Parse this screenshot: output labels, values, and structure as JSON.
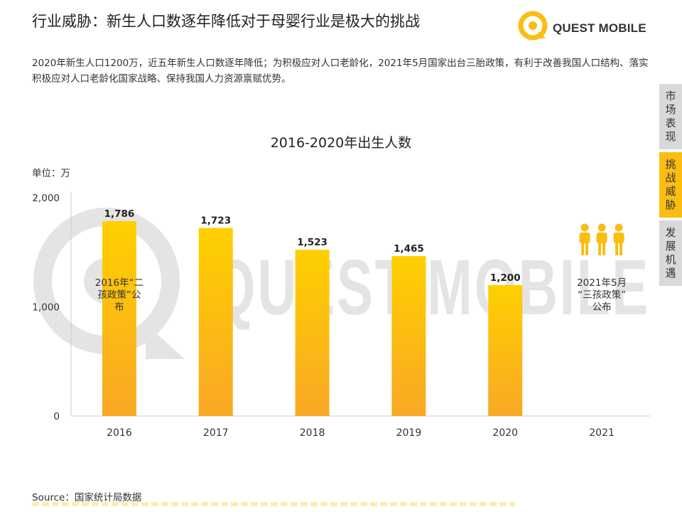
{
  "page": {
    "title": "行业威胁：新生人口数逐年降低对于母婴行业是极大的挑战",
    "description": "2020年新生人口1200万，近五年新生人口数逐年降低；为积极应对人口老龄化，2021年5月国家出台三胎政策，有利于改善我国人口结构、落实积极应对人口老龄化国家战略、保持我国人力资源禀赋优势。",
    "source": "Source：国家统计局数据"
  },
  "logo": {
    "text": "QUEST MOBILE",
    "watermark": "QUEST MOBILE",
    "icon": "quest-mobile-logo-icon",
    "color": "#fbbd12"
  },
  "side_tabs": [
    {
      "label": "市场表现",
      "active": false
    },
    {
      "label": "挑战威胁",
      "active": true
    },
    {
      "label": "发展机遇",
      "active": false
    }
  ],
  "colors": {
    "accent": "#fbbd12",
    "bar_top": "#ffd000",
    "bar_bottom": "#f9a825",
    "tab_inactive": "#d9d9d9"
  },
  "chart_data": {
    "type": "bar",
    "title": "2016-2020年出生人数",
    "unit_label": "单位：万",
    "categories": [
      "2016",
      "2017",
      "2018",
      "2019",
      "2020",
      "2021"
    ],
    "values": [
      1786,
      1723,
      1523,
      1465,
      1200,
      null
    ],
    "value_labels": [
      "1,786",
      "1,723",
      "1,523",
      "1,465",
      "1,200",
      ""
    ],
    "ylim": [
      0,
      2000
    ],
    "yticks": [
      0,
      1000,
      2000
    ],
    "ytick_labels": [
      "0",
      "1,000",
      "2,000"
    ],
    "grid": false,
    "annotations": [
      {
        "category": "2016",
        "lines": [
          "2016年“二",
          "孩政策”公",
          "布"
        ]
      },
      {
        "category": "2021",
        "lines": [
          "2021年5月",
          "“三孩政策”",
          "公布"
        ],
        "icon": "three-people-icon"
      }
    ]
  }
}
